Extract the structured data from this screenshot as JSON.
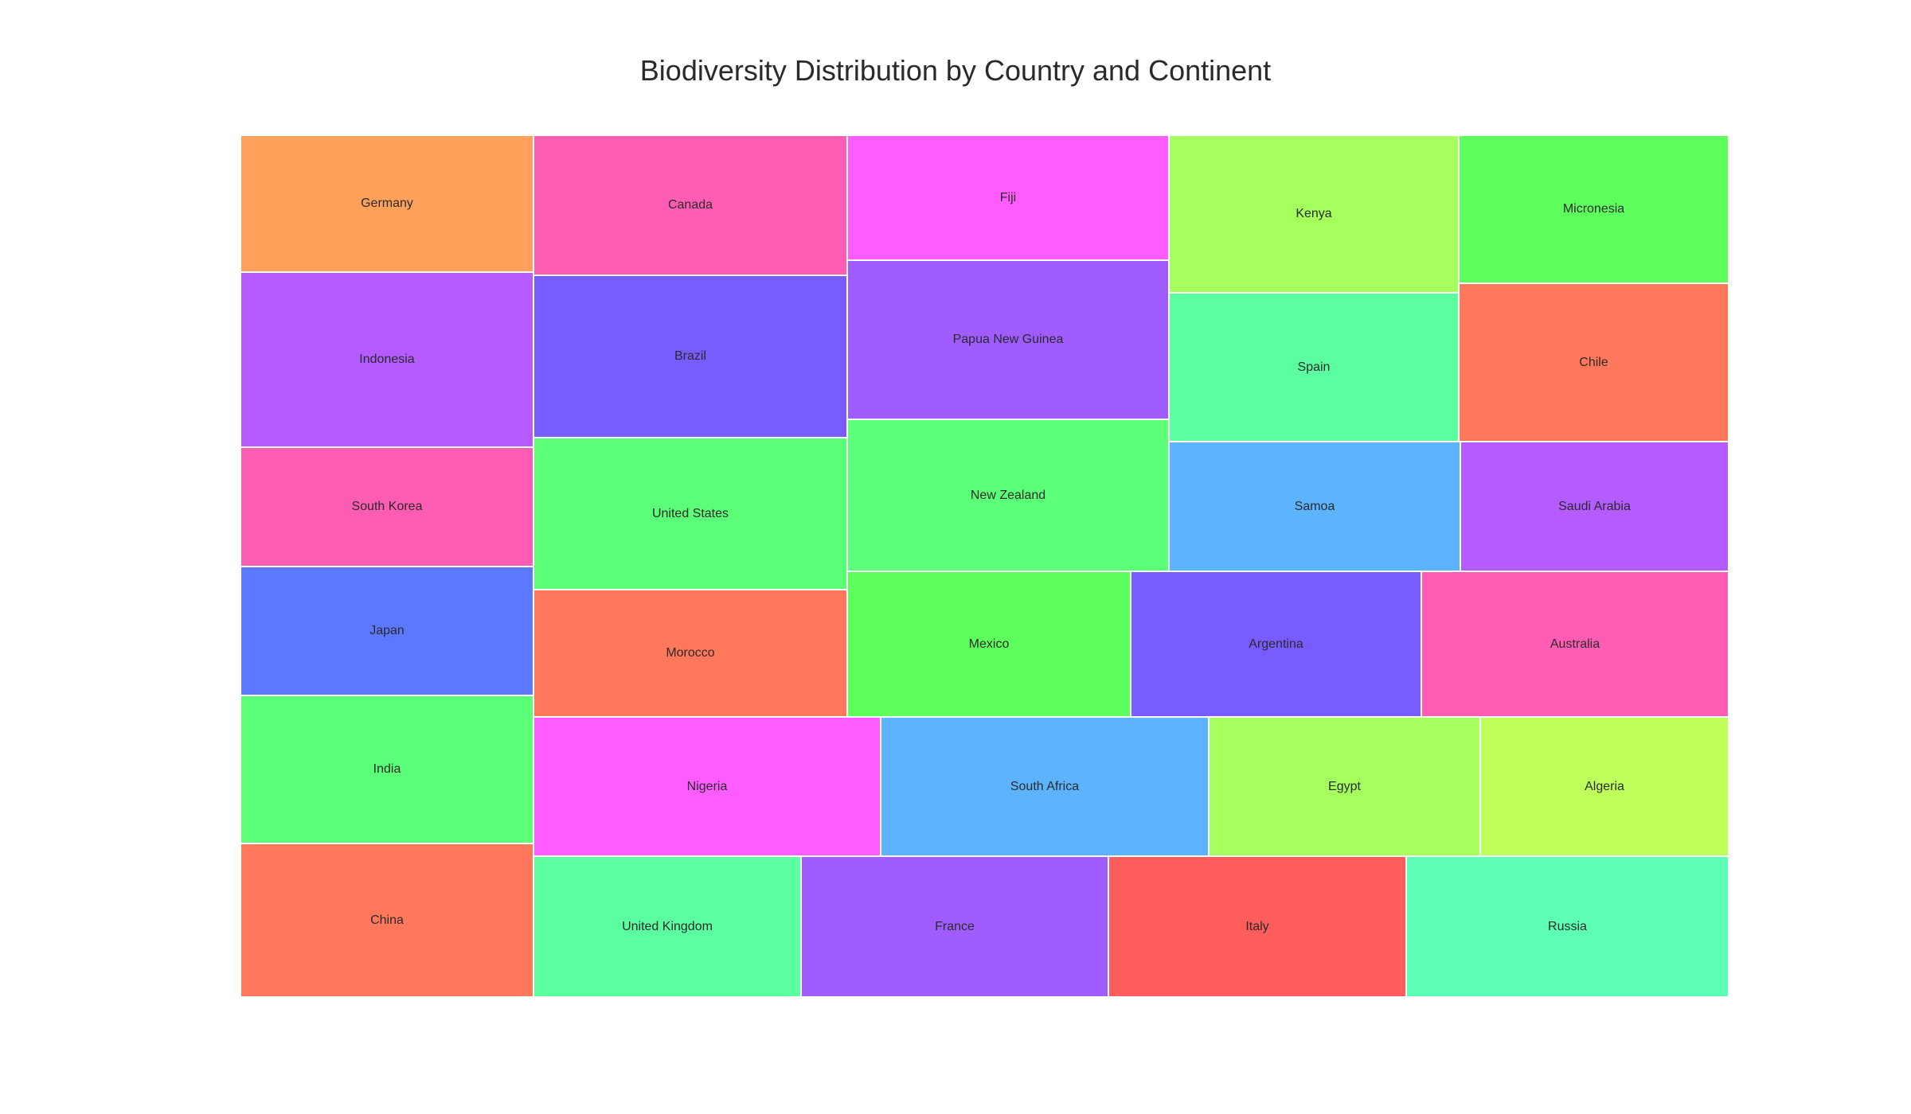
{
  "chart_data": {
    "type": "treemap",
    "title": "Biodiversity Distribution by Country and Continent",
    "tiles": [
      {
        "label": "Germany",
        "color": "#FFA15A"
      },
      {
        "label": "Indonesia",
        "color": "#B45CFF"
      },
      {
        "label": "South Korea",
        "color": "#FF5CB4"
      },
      {
        "label": "Japan",
        "color": "#5C78FF"
      },
      {
        "label": "India",
        "color": "#5CFF78"
      },
      {
        "label": "China",
        "color": "#FF785C"
      },
      {
        "label": "Canada",
        "color": "#FF5CB4"
      },
      {
        "label": "Brazil",
        "color": "#785CFF"
      },
      {
        "label": "United States",
        "color": "#5CFF78"
      },
      {
        "label": "Morocco",
        "color": "#FF785C"
      },
      {
        "label": "Fiji",
        "color": "#FF5CFF"
      },
      {
        "label": "Papua New Guinea",
        "color": "#A05CFF"
      },
      {
        "label": "New Zealand",
        "color": "#5CFF78"
      },
      {
        "label": "Kenya",
        "color": "#A5FF5C"
      },
      {
        "label": "Spain",
        "color": "#5CFFA0"
      },
      {
        "label": "Samoa",
        "color": "#5CB4FF"
      },
      {
        "label": "Micronesia",
        "color": "#5CFF5C"
      },
      {
        "label": "Chile",
        "color": "#FF785C"
      },
      {
        "label": "Saudi Arabia",
        "color": "#B45CFF"
      },
      {
        "label": "Mexico",
        "color": "#5CFF5C"
      },
      {
        "label": "Argentina",
        "color": "#785CFF"
      },
      {
        "label": "Australia",
        "color": "#FF5CB4"
      },
      {
        "label": "Nigeria",
        "color": "#FF5CFF"
      },
      {
        "label": "South Africa",
        "color": "#5CB4FF"
      },
      {
        "label": "Egypt",
        "color": "#A5FF5C"
      },
      {
        "label": "Algeria",
        "color": "#BEFF5C"
      },
      {
        "label": "United Kingdom",
        "color": "#5CFFA0"
      },
      {
        "label": "France",
        "color": "#A05CFF"
      },
      {
        "label": "Italy",
        "color": "#FF5C5C"
      },
      {
        "label": "Russia",
        "color": "#5CFFB4"
      }
    ]
  }
}
